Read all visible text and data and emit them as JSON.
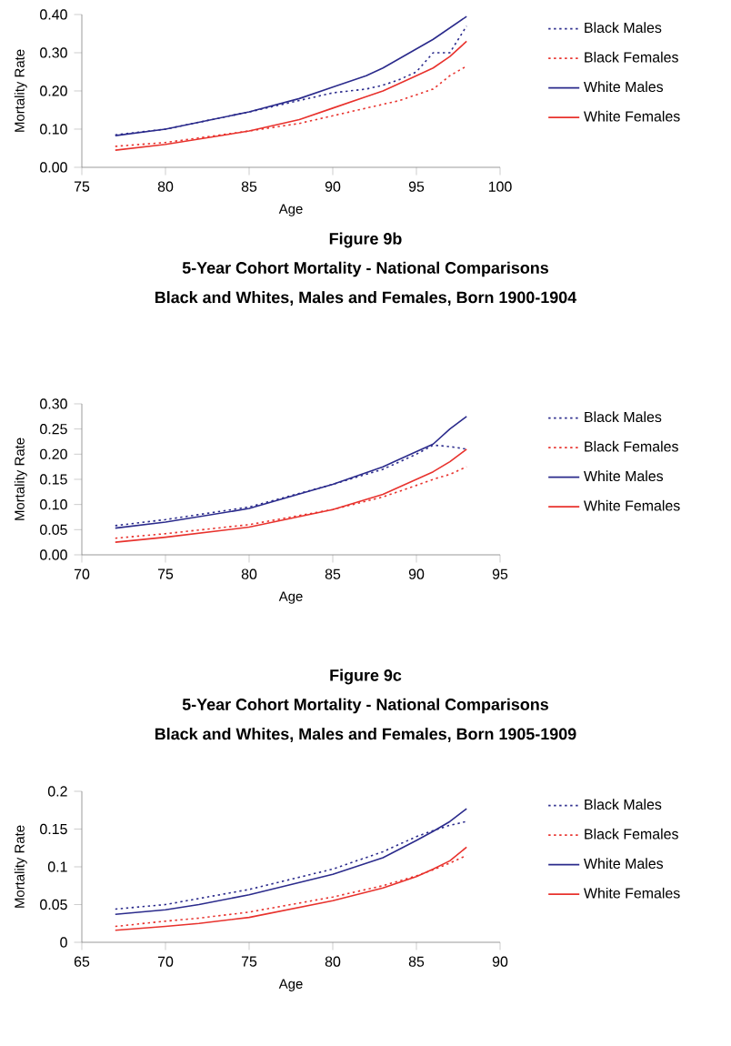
{
  "chart_data": [
    {
      "type": "line",
      "xlabel": "Age",
      "ylabel": "Mortality Rate",
      "legend": "right",
      "x": [
        77,
        80,
        85,
        88,
        90,
        92,
        93,
        94,
        95,
        96,
        97,
        98
      ],
      "xlim": [
        75,
        100
      ],
      "xticks": [
        75,
        80,
        85,
        90,
        95,
        100
      ],
      "ylim": [
        0,
        0.4
      ],
      "yticks": [
        {
          "value": 0,
          "label": "0.00"
        },
        {
          "value": 0.1,
          "label": "0.10"
        },
        {
          "value": 0.2,
          "label": "0.20"
        },
        {
          "value": 0.3,
          "label": "0.30"
        },
        {
          "value": 0.4,
          "label": "0.40"
        }
      ],
      "series": [
        {
          "name": "Black Males",
          "color": "#2b2b8c",
          "line_style": "dotted",
          "values": [
            0.085,
            0.1,
            0.145,
            0.175,
            0.195,
            0.205,
            0.215,
            0.23,
            0.25,
            0.3,
            0.3,
            0.37
          ]
        },
        {
          "name": "Black Females",
          "color": "#e8322d",
          "line_style": "dotted",
          "values": [
            0.055,
            0.065,
            0.095,
            0.115,
            0.135,
            0.155,
            0.165,
            0.175,
            0.19,
            0.205,
            0.24,
            0.265
          ]
        },
        {
          "name": "White Males",
          "color": "#2b2b8c",
          "line_style": "solid",
          "values": [
            0.083,
            0.1,
            0.145,
            0.18,
            0.21,
            0.24,
            0.26,
            0.285,
            0.31,
            0.335,
            0.365,
            0.395
          ]
        },
        {
          "name": "White Females",
          "color": "#e8322d",
          "line_style": "solid",
          "values": [
            0.045,
            0.06,
            0.095,
            0.125,
            0.155,
            0.185,
            0.2,
            0.22,
            0.24,
            0.26,
            0.29,
            0.33
          ]
        }
      ]
    },
    {
      "type": "line",
      "title": "Figure 9b",
      "subtitle": "5-Year Cohort Mortality - National Comparisons",
      "annotations": [
        "Black and Whites, Males and Females, Born 1900-1904"
      ],
      "xlabel": "Age",
      "ylabel": "Mortality Rate",
      "legend": "right",
      "x": [
        72,
        75,
        80,
        85,
        88,
        90,
        91,
        92,
        93
      ],
      "xlim": [
        70,
        95
      ],
      "xticks": [
        70,
        75,
        80,
        85,
        90,
        95
      ],
      "ylim": [
        0,
        0.3
      ],
      "yticks": [
        {
          "value": 0,
          "label": "0.00"
        },
        0.05,
        {
          "value": 0.1,
          "label": "0.10"
        },
        0.15,
        {
          "value": 0.2,
          "label": "0.20"
        },
        0.25,
        {
          "value": 0.3,
          "label": "0.30"
        }
      ],
      "series": [
        {
          "name": "Black Males",
          "color": "#2b2b8c",
          "line_style": "dotted",
          "values": [
            0.058,
            0.07,
            0.095,
            0.14,
            0.17,
            0.2,
            0.218,
            0.215,
            0.21
          ]
        },
        {
          "name": "Black Females",
          "color": "#e8322d",
          "line_style": "dotted",
          "values": [
            0.033,
            0.042,
            0.06,
            0.09,
            0.115,
            0.138,
            0.15,
            0.16,
            0.175
          ]
        },
        {
          "name": "White Males",
          "color": "#2b2b8c",
          "line_style": "solid",
          "values": [
            0.053,
            0.065,
            0.092,
            0.14,
            0.175,
            0.205,
            0.22,
            0.25,
            0.275
          ]
        },
        {
          "name": "White Females",
          "color": "#e8322d",
          "line_style": "solid",
          "values": [
            0.025,
            0.035,
            0.055,
            0.09,
            0.12,
            0.15,
            0.165,
            0.185,
            0.21
          ]
        }
      ]
    },
    {
      "type": "line",
      "title": "Figure 9c",
      "subtitle": "5-Year Cohort Mortality - National Comparisons",
      "annotations": [
        "Black and Whites, Males and Females, Born 1905-1909"
      ],
      "xlabel": "Age",
      "ylabel": "Mortality Rate",
      "legend": "right",
      "x": [
        67,
        70,
        72,
        75,
        80,
        83,
        85,
        86,
        87,
        88
      ],
      "xlim": [
        65,
        90
      ],
      "xticks": [
        65,
        70,
        75,
        80,
        85,
        90
      ],
      "ylim": [
        0,
        0.2
      ],
      "yticks": [
        0,
        0.05,
        0.1,
        0.15,
        0.2
      ],
      "series": [
        {
          "name": "Black Males",
          "color": "#2b2b8c",
          "line_style": "dotted",
          "values": [
            0.044,
            0.05,
            0.058,
            0.07,
            0.097,
            0.12,
            0.14,
            0.148,
            0.155,
            0.16
          ]
        },
        {
          "name": "Black Females",
          "color": "#e8322d",
          "line_style": "dotted",
          "values": [
            0.021,
            0.028,
            0.032,
            0.04,
            0.06,
            0.075,
            0.088,
            0.096,
            0.105,
            0.115
          ]
        },
        {
          "name": "White Males",
          "color": "#2b2b8c",
          "line_style": "solid",
          "values": [
            0.037,
            0.043,
            0.05,
            0.063,
            0.09,
            0.112,
            0.135,
            0.147,
            0.16,
            0.177
          ]
        },
        {
          "name": "White Females",
          "color": "#e8322d",
          "line_style": "solid",
          "values": [
            0.016,
            0.021,
            0.025,
            0.033,
            0.055,
            0.072,
            0.087,
            0.097,
            0.108,
            0.126
          ]
        }
      ]
    }
  ]
}
